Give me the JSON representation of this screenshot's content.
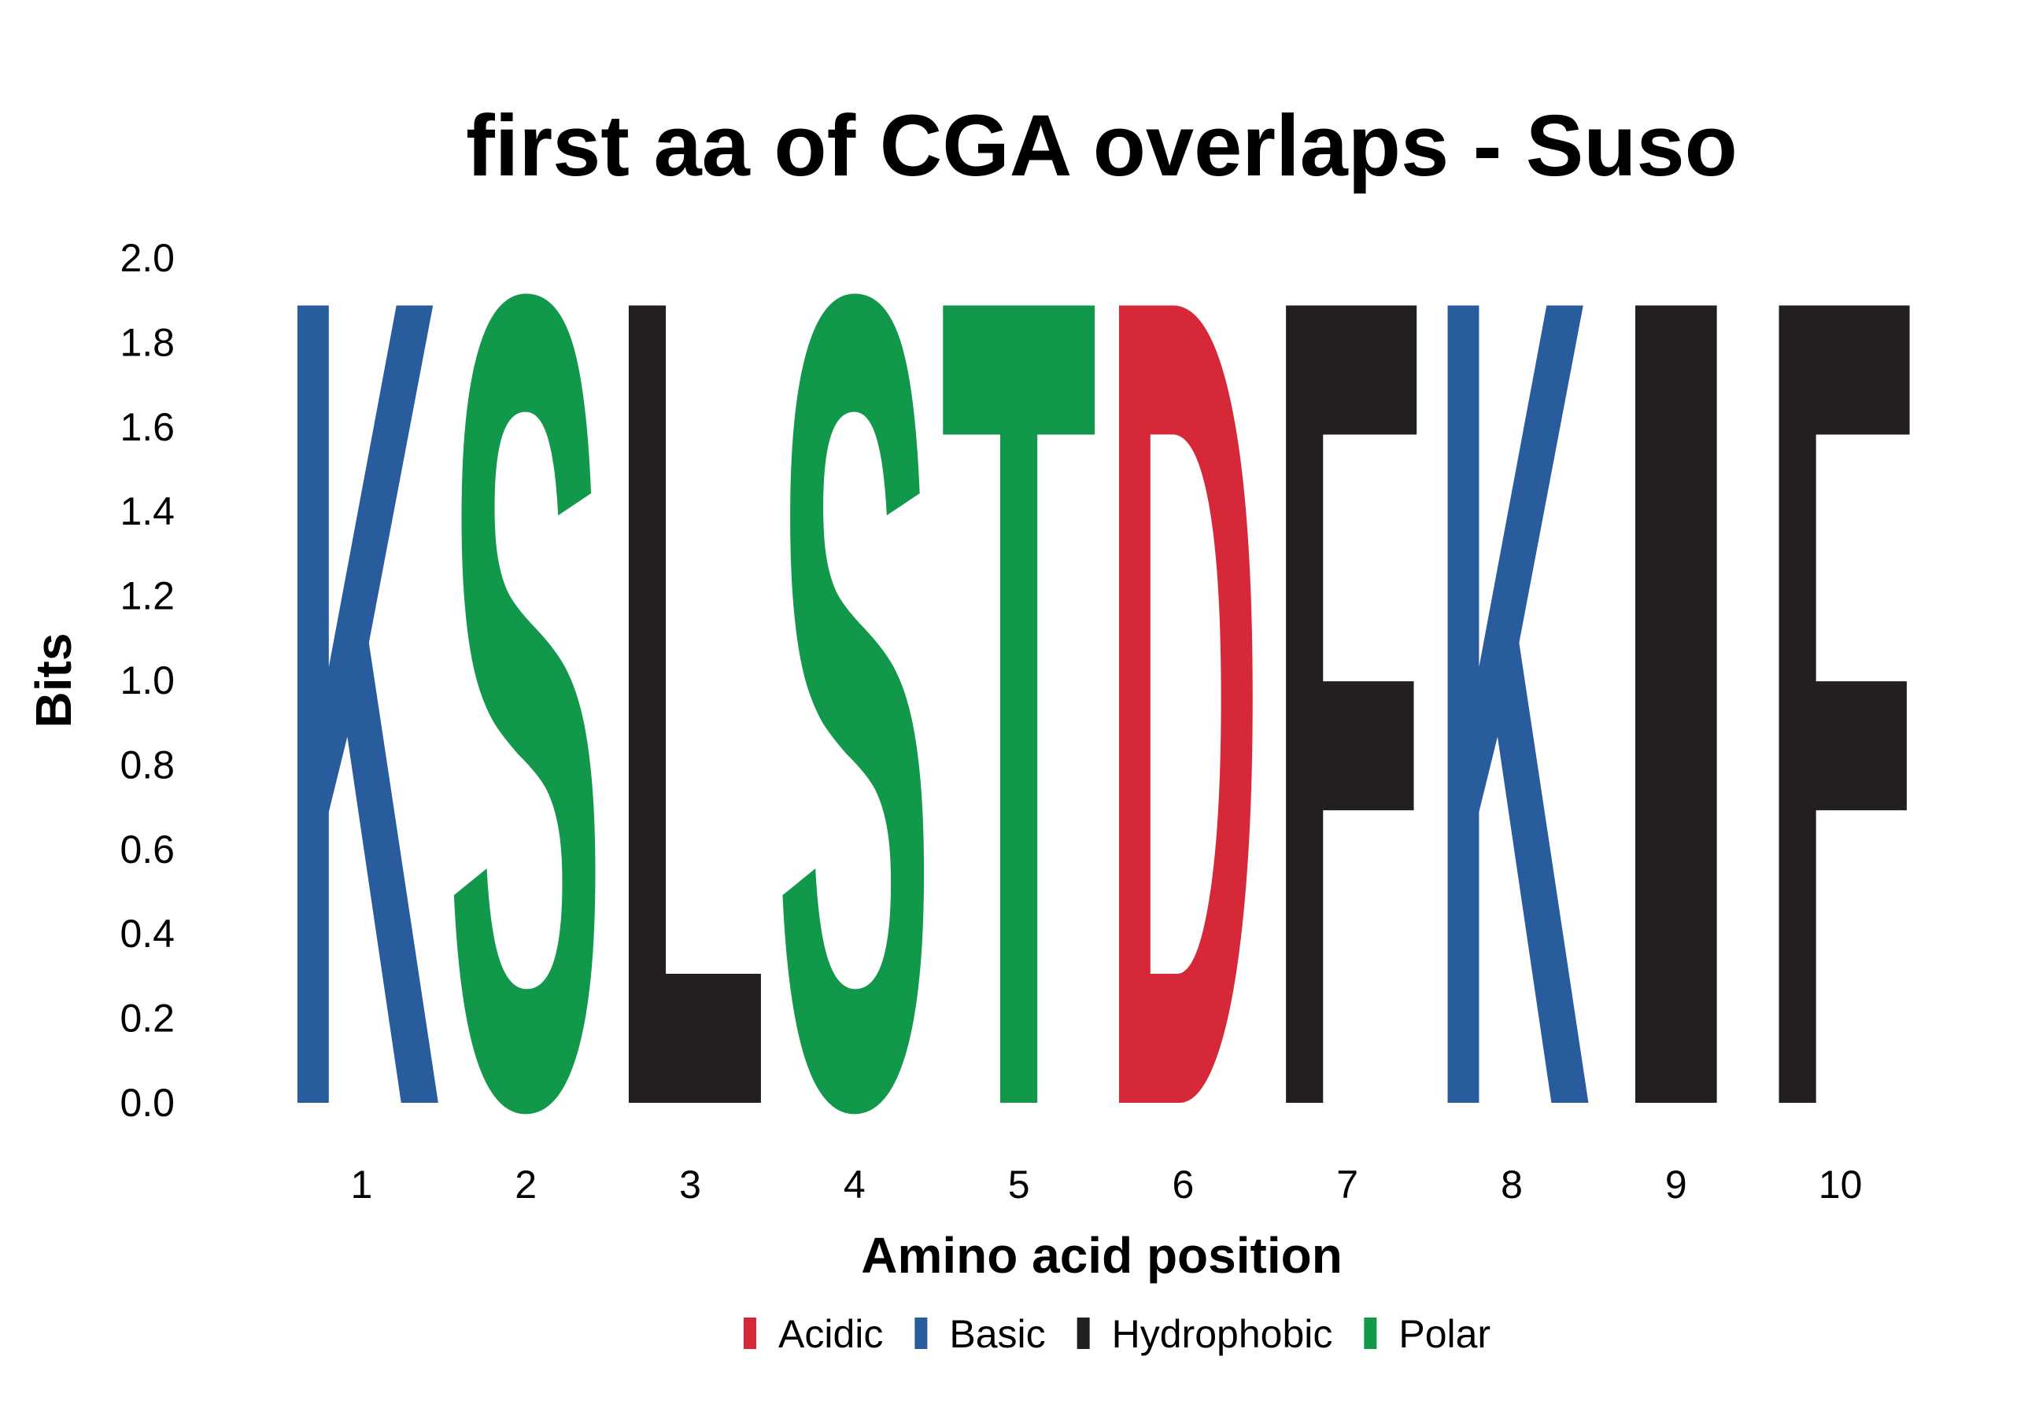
{
  "chart_data": {
    "type": "sequence-logo",
    "title": "first aa of CGA overlaps - Suso",
    "xlabel": "Amino acid position",
    "ylabel": "Bits",
    "ylim": [
      0,
      2
    ],
    "yticks": [
      "0.0",
      "0.2",
      "0.4",
      "0.6",
      "0.8",
      "1.0",
      "1.2",
      "1.4",
      "1.6",
      "1.8",
      "2.0"
    ],
    "positions": [
      "1",
      "2",
      "3",
      "4",
      "5",
      "6",
      "7",
      "8",
      "9",
      "10"
    ],
    "letters": [
      {
        "position": 1,
        "letter": "K",
        "bits": 2.0,
        "group": "Basic"
      },
      {
        "position": 2,
        "letter": "S",
        "bits": 2.0,
        "group": "Polar"
      },
      {
        "position": 3,
        "letter": "L",
        "bits": 2.0,
        "group": "Hydrophobic"
      },
      {
        "position": 4,
        "letter": "S",
        "bits": 2.0,
        "group": "Polar"
      },
      {
        "position": 5,
        "letter": "T",
        "bits": 2.0,
        "group": "Polar"
      },
      {
        "position": 6,
        "letter": "D",
        "bits": 2.0,
        "group": "Acidic"
      },
      {
        "position": 7,
        "letter": "F",
        "bits": 2.0,
        "group": "Hydrophobic"
      },
      {
        "position": 8,
        "letter": "K",
        "bits": 2.0,
        "group": "Basic"
      },
      {
        "position": 9,
        "letter": "I",
        "bits": 2.0,
        "group": "Hydrophobic"
      },
      {
        "position": 10,
        "letter": "F",
        "bits": 2.0,
        "group": "Hydrophobic"
      }
    ],
    "legend": [
      {
        "name": "Acidic",
        "color": "#d7283a"
      },
      {
        "name": "Basic",
        "color": "#285c9c"
      },
      {
        "name": "Hydrophobic",
        "color": "#231f20"
      },
      {
        "name": "Polar",
        "color": "#12984a"
      }
    ],
    "legend_position": "bottom",
    "grid": false
  }
}
